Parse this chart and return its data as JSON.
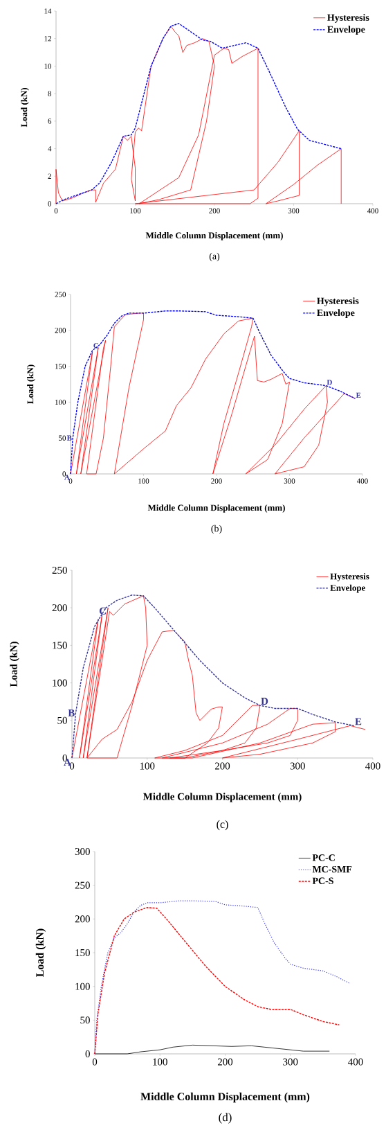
{
  "chart_data": [
    {
      "type": "line",
      "xlabel": "Middle Column Displacement (mm)",
      "ylabel": "Load (kN)",
      "xlim": [
        0,
        400
      ],
      "ylim": [
        0,
        14
      ],
      "xticks": [
        0,
        100,
        200,
        300,
        400
      ],
      "yticks": [
        0,
        2,
        4,
        6,
        8,
        10,
        12,
        14
      ],
      "legend": "top right",
      "series": [
        {
          "name": "Hysteresis",
          "color": "#ff0000",
          "line_style": "solid",
          "x": [
            0,
            0,
            3,
            8,
            20,
            35,
            45,
            50,
            50,
            60,
            75,
            85,
            90,
            95,
            100,
            100,
            95,
            100,
            104,
            108,
            120,
            135,
            145,
            150,
            155,
            160,
            165,
            175,
            185,
            193,
            200,
            190,
            170,
            130,
            105,
            155,
            180,
            200,
            212,
            218,
            222,
            235,
            255,
            255,
            245,
            100,
            250,
            280,
            307,
            307,
            280,
            265,
            300,
            330,
            360,
            360
          ],
          "values": [
            0,
            2.5,
            0.8,
            0.2,
            0.4,
            0.8,
            1.0,
            1.0,
            0.1,
            1.5,
            2.5,
            4.9,
            4.6,
            4.9,
            2.6,
            0.2,
            1.8,
            5.2,
            5.5,
            5.3,
            10,
            12,
            12.9,
            12.5,
            12.2,
            11.0,
            11.5,
            11.7,
            12.0,
            11.8,
            10.0,
            6.0,
            1.0,
            0.3,
            0,
            1.9,
            5.0,
            10.8,
            11.3,
            11.2,
            10.2,
            10.7,
            11.3,
            0.4,
            0,
            0,
            1.0,
            3.0,
            5.3,
            0.6,
            0.2,
            0,
            1.4,
            2.8,
            4.0,
            0
          ]
        },
        {
          "name": "Envelope",
          "color": "#0000ff",
          "line_style": "dashed",
          "x": [
            0,
            10,
            30,
            45,
            55,
            70,
            85,
            95,
            100,
            120,
            135,
            145,
            155,
            170,
            185,
            195,
            210,
            225,
            240,
            255,
            270,
            290,
            305,
            320,
            340,
            360
          ],
          "values": [
            0,
            0.3,
            0.7,
            1.0,
            1.5,
            3,
            4.9,
            5.0,
            5.5,
            10,
            12,
            12.9,
            13.1,
            12.5,
            11.9,
            11.8,
            11.3,
            11.5,
            11.7,
            11.3,
            9.5,
            7,
            5.4,
            4.6,
            4.3,
            4.0
          ]
        }
      ],
      "annotations": [
        "(a)"
      ]
    },
    {
      "type": "line",
      "xlabel": "Middle Column Displacement (mm)",
      "ylabel": "Load (kN)",
      "xlim": [
        0,
        400
      ],
      "ylim": [
        0,
        250
      ],
      "xticks": [
        0,
        100,
        200,
        300,
        400
      ],
      "yticks": [
        0,
        50,
        100,
        150,
        200,
        250
      ],
      "legend": "top right",
      "series": [
        {
          "name": "Hysteresis",
          "color": "#ff0000",
          "line_style": "solid",
          "x": [
            0,
            30,
            8,
            38,
            14,
            48,
            45,
            22,
            35,
            45,
            55,
            60,
            75,
            95,
            100,
            100,
            80,
            60,
            100,
            130,
            145,
            165,
            185,
            210,
            230,
            250,
            248,
            230,
            210,
            195,
            220,
            240,
            252,
            256,
            265,
            275,
            290,
            295,
            300,
            290,
            270,
            240,
            280,
            320,
            350,
            352,
            340,
            320,
            280,
            320,
            375,
            390
          ],
          "values": [
            0,
            170,
            0,
            176,
            0,
            186,
            175,
            0,
            0,
            50,
            150,
            205,
            222,
            224,
            224,
            215,
            120,
            0,
            35,
            60,
            95,
            120,
            160,
            195,
            213,
            217,
            205,
            140,
            70,
            0,
            80,
            150,
            192,
            130,
            128,
            132,
            140,
            125,
            128,
            70,
            20,
            0,
            40,
            90,
            123,
            100,
            40,
            10,
            0,
            50,
            112,
            105
          ]
        },
        {
          "name": "Envelope",
          "color": "#0000ff",
          "line_style": "dashed",
          "x": [
            0,
            3,
            10,
            20,
            30,
            40,
            50,
            60,
            70,
            80,
            100,
            130,
            150,
            185,
            200,
            230,
            250,
            260,
            275,
            292,
            300,
            320,
            350,
            370,
            390
          ],
          "values": [
            0,
            50,
            100,
            150,
            172,
            180,
            193,
            210,
            220,
            224,
            224,
            227,
            227,
            226,
            221,
            219,
            217,
            195,
            165,
            142,
            133,
            127,
            123,
            115,
            105
          ]
        }
      ],
      "annotations": [
        {
          "text": "A",
          "x": 0,
          "y": 0
        },
        {
          "text": "B",
          "x": 3,
          "y": 50
        },
        {
          "text": "C",
          "x": 30,
          "y": 174
        },
        {
          "text": "D",
          "x": 350,
          "y": 123
        },
        {
          "text": "E",
          "x": 390,
          "y": 105
        },
        "(b)"
      ]
    },
    {
      "type": "line",
      "xlabel": "Middle Column Displacement (mm)",
      "ylabel": "Load (kN)",
      "xlim": [
        0,
        400
      ],
      "ylim": [
        0,
        250
      ],
      "xticks": [
        0,
        100,
        200,
        300,
        400
      ],
      "yticks": [
        0,
        50,
        100,
        150,
        200,
        250
      ],
      "legend": "top right",
      "series": [
        {
          "name": "Hysteresis",
          "color": "#ff0000",
          "line_style": "solid",
          "x": [
            0,
            35,
            10,
            40,
            15,
            48,
            20,
            50,
            55,
            70,
            95,
            98,
            100,
            80,
            60,
            20,
            40,
            60,
            80,
            100,
            120,
            135,
            150,
            155,
            160,
            165,
            170,
            185,
            195,
            200,
            195,
            180,
            150,
            110,
            150,
            200,
            240,
            250,
            245,
            230,
            200,
            150,
            120,
            200,
            260,
            290,
            300,
            300,
            290,
            260,
            200,
            130,
            160,
            250,
            320,
            350,
            350,
            320,
            250,
            200,
            300,
            370,
            390
          ],
          "values": [
            0,
            185,
            0,
            190,
            0,
            200,
            0,
            195,
            190,
            205,
            216,
            200,
            150,
            70,
            0,
            0,
            25,
            38,
            75,
            130,
            168,
            170,
            155,
            130,
            110,
            60,
            50,
            65,
            68,
            68,
            40,
            20,
            0,
            0,
            10,
            30,
            70,
            70,
            40,
            20,
            10,
            0,
            0,
            20,
            45,
            66,
            66,
            50,
            30,
            20,
            10,
            0,
            0,
            20,
            45,
            47,
            35,
            20,
            5,
            0,
            25,
            43,
            38
          ]
        },
        {
          "name": "Envelope",
          "color": "#333399",
          "line_style": "dashed",
          "x": [
            0,
            5,
            15,
            30,
            45,
            60,
            80,
            95,
            110,
            140,
            170,
            200,
            230,
            250,
            270,
            300,
            320,
            350,
            375
          ],
          "values": [
            0,
            60,
            120,
            175,
            200,
            210,
            217,
            216,
            200,
            165,
            130,
            100,
            80,
            70,
            66,
            66,
            58,
            48,
            43
          ]
        }
      ],
      "annotations": [
        {
          "text": "A",
          "x": 0,
          "y": 0
        },
        {
          "text": "B",
          "x": 5,
          "y": 60
        },
        {
          "text": "C",
          "x": 35,
          "y": 190
        },
        {
          "text": "D",
          "x": 250,
          "y": 70
        },
        {
          "text": "E",
          "x": 375,
          "y": 43
        },
        "(c)"
      ]
    },
    {
      "type": "line",
      "xlabel": "Middle Column Displacement (mm)",
      "ylabel": "Load (kN)",
      "xlim": [
        0,
        400
      ],
      "ylim": [
        0,
        300
      ],
      "xticks": [
        0,
        100,
        200,
        300,
        400
      ],
      "yticks": [
        0,
        50,
        100,
        150,
        200,
        250,
        300
      ],
      "legend": "top right",
      "series": [
        {
          "name": "PC-C",
          "color": "#000000",
          "line_style": "solid",
          "x": [
            0,
            50,
            70,
            90,
            100,
            120,
            150,
            180,
            210,
            240,
            260,
            280,
            300,
            320,
            360
          ],
          "values": [
            0,
            0,
            3,
            5,
            6,
            10,
            13,
            12,
            11,
            12,
            10,
            8,
            6,
            4,
            4
          ]
        },
        {
          "name": "MC-SMF",
          "color": "#3333ff",
          "line_style": "dotted",
          "x": [
            0,
            3,
            10,
            20,
            30,
            40,
            50,
            60,
            70,
            80,
            100,
            130,
            150,
            185,
            200,
            230,
            250,
            260,
            275,
            292,
            300,
            320,
            350,
            370,
            390
          ],
          "values": [
            0,
            50,
            100,
            150,
            172,
            180,
            193,
            210,
            220,
            224,
            224,
            227,
            227,
            226,
            221,
            219,
            217,
            195,
            165,
            142,
            133,
            127,
            123,
            115,
            105
          ]
        },
        {
          "name": "PC-S",
          "color": "#ff0000",
          "line_style": "dashed",
          "x": [
            0,
            5,
            15,
            30,
            45,
            60,
            80,
            95,
            110,
            140,
            170,
            200,
            230,
            250,
            270,
            300,
            320,
            350,
            375
          ],
          "values": [
            0,
            60,
            120,
            175,
            200,
            210,
            217,
            216,
            200,
            165,
            130,
            100,
            80,
            70,
            66,
            66,
            58,
            48,
            43
          ]
        }
      ],
      "annotations": [
        "(d)"
      ]
    }
  ]
}
